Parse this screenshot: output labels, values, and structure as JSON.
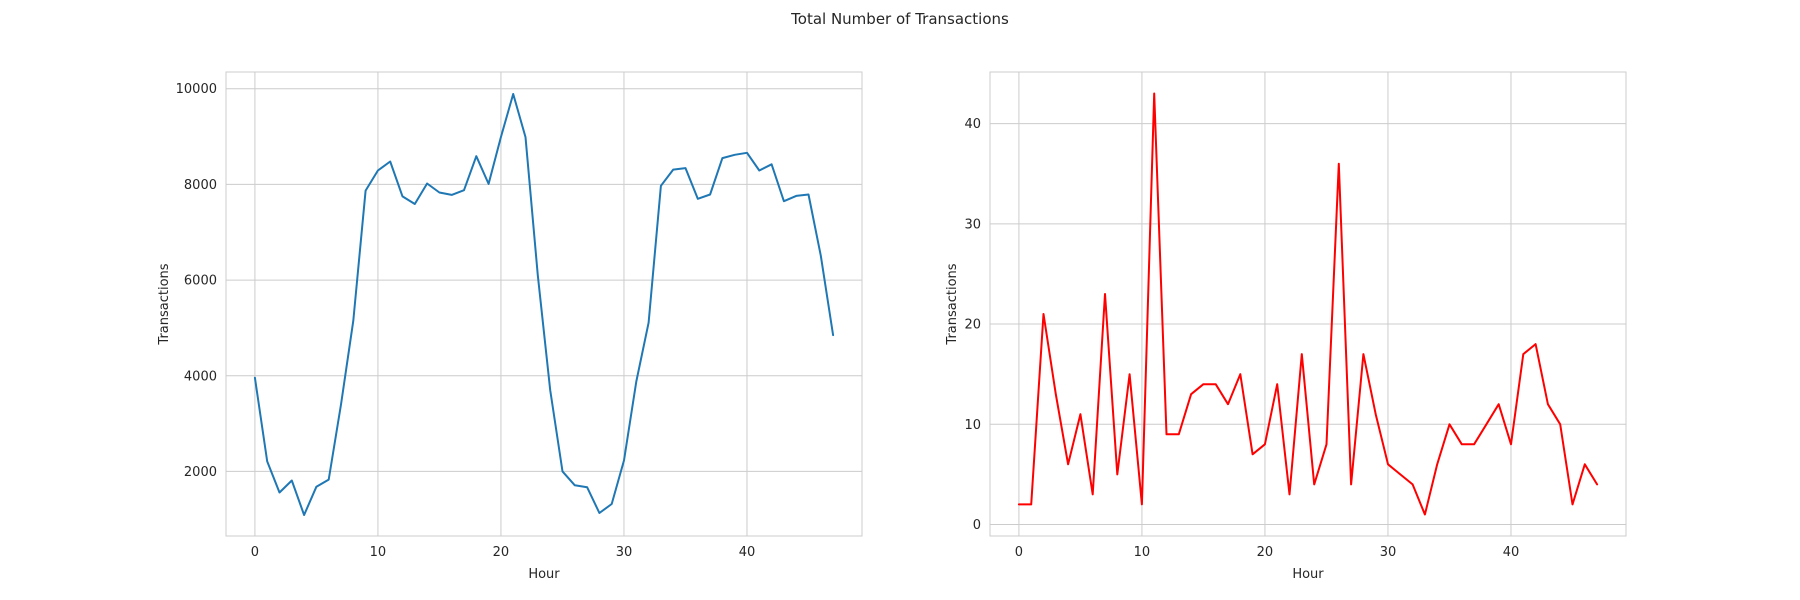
{
  "figure": {
    "suptitle": "Total Number of Transactions"
  },
  "chart_data": [
    {
      "type": "line",
      "xlabel": "Hour",
      "ylabel": "Transactions",
      "xlim": [
        -2.35,
        49.35
      ],
      "ylim": [
        650,
        10350
      ],
      "xticks": [
        0,
        10,
        20,
        30,
        40
      ],
      "yticks": [
        2000,
        4000,
        6000,
        8000,
        10000
      ],
      "grid": true,
      "series": [
        {
          "color": "#1f77b4",
          "x": [
            0,
            1,
            2,
            3,
            4,
            5,
            6,
            7,
            8,
            9,
            10,
            11,
            12,
            13,
            14,
            15,
            16,
            17,
            18,
            19,
            20,
            21,
            22,
            23,
            24,
            25,
            26,
            27,
            28,
            29,
            30,
            31,
            32,
            33,
            34,
            35,
            36,
            37,
            38,
            39,
            40,
            41,
            42,
            43,
            44,
            45,
            46,
            47
          ],
          "y": [
            3960,
            2210,
            1560,
            1810,
            1090,
            1680,
            1830,
            3400,
            5150,
            7870,
            8290,
            8480,
            7750,
            7590,
            8020,
            7830,
            7780,
            7880,
            8590,
            8010,
            8990,
            9890,
            8990,
            6100,
            3700,
            2000,
            1710,
            1670,
            1130,
            1320,
            2230,
            3880,
            5110,
            7970,
            8310,
            8340,
            7700,
            7790,
            8550,
            8620,
            8660,
            8290,
            8420,
            7650,
            7760,
            7790,
            6510,
            4850
          ]
        }
      ]
    },
    {
      "type": "line",
      "xlabel": "Hour",
      "ylabel": "Transactions",
      "xlim": [
        -2.35,
        49.35
      ],
      "ylim": [
        -1.15,
        45.15
      ],
      "xticks": [
        0,
        10,
        20,
        30,
        40
      ],
      "yticks": [
        0,
        10,
        20,
        30,
        40
      ],
      "grid": true,
      "series": [
        {
          "color": "#ff0000",
          "x": [
            0,
            1,
            2,
            3,
            4,
            5,
            6,
            7,
            8,
            9,
            10,
            11,
            12,
            13,
            14,
            15,
            16,
            17,
            18,
            19,
            20,
            21,
            22,
            23,
            24,
            25,
            26,
            27,
            28,
            29,
            30,
            31,
            32,
            33,
            34,
            35,
            36,
            37,
            38,
            39,
            40,
            41,
            42,
            43,
            44,
            45,
            46,
            47
          ],
          "y": [
            2,
            2,
            21,
            13,
            6,
            11,
            3,
            23,
            5,
            15,
            2,
            43,
            9,
            9,
            13,
            14,
            14,
            12,
            15,
            7,
            8,
            14,
            3,
            17,
            4,
            8,
            36,
            4,
            17,
            11,
            6,
            5,
            4,
            1,
            6,
            10,
            8,
            8,
            10,
            12,
            8,
            17,
            18,
            12,
            10,
            2,
            6,
            4
          ]
        }
      ]
    }
  ]
}
